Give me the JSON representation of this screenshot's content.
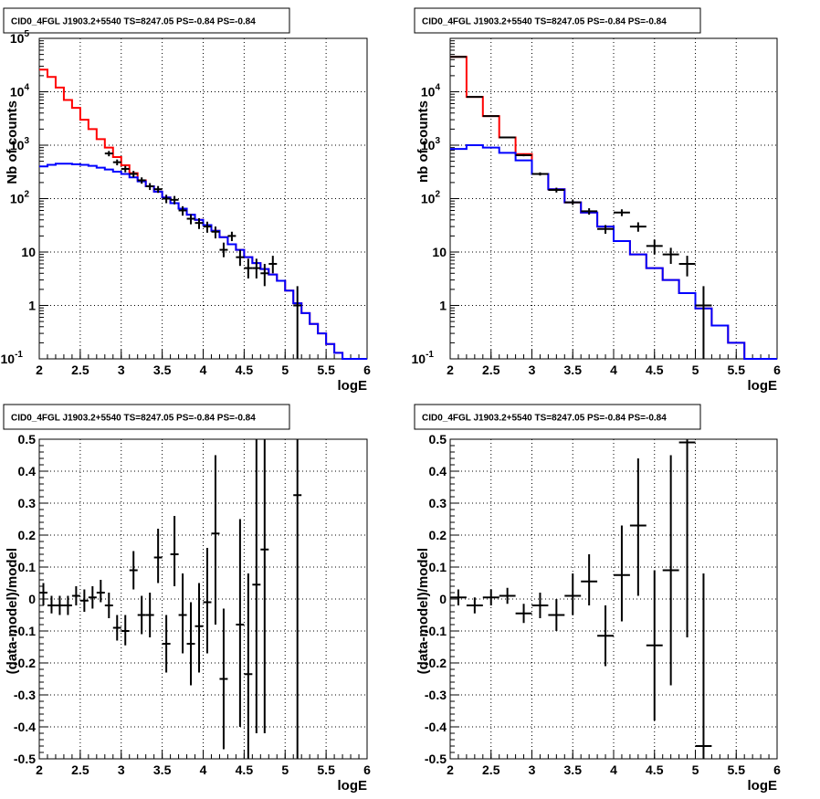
{
  "colors": {
    "total_model": "#ff0000",
    "component_model": "#0000ff",
    "data": "#000000",
    "grid": "#000000"
  },
  "chart_data": [
    {
      "type": "line",
      "title": "CID0_4FGL J1903.2+5540 TS=8247.05 PS=-0.84 PS=-0.84",
      "xlabel": "logE",
      "ylabel": "Nb of counts",
      "xlim": [
        2,
        6
      ],
      "ylim": [
        0.1,
        100000
      ],
      "yscale": "log",
      "grid": true,
      "xticks": [
        "2",
        "2.5",
        "3",
        "3.5",
        "4",
        "4.5",
        "5",
        "5.5",
        "6"
      ],
      "yticks": [
        "10^-1",
        "1",
        "10",
        "10^2",
        "10^3",
        "10^4",
        "10^5"
      ],
      "bin_edges": [
        2.0,
        2.1,
        2.2,
        2.3,
        2.4,
        2.5,
        2.6,
        2.7,
        2.8,
        2.9,
        3.0,
        3.1,
        3.2,
        3.3,
        3.4,
        3.5,
        3.6,
        3.7,
        3.8,
        3.9,
        4.0,
        4.1,
        4.2,
        4.3,
        4.4,
        4.5,
        4.6,
        4.7,
        4.8,
        4.9,
        5.0,
        5.1,
        5.2,
        5.3,
        5.4,
        5.5,
        5.6,
        5.7,
        5.8,
        5.9,
        6.0
      ],
      "series": [
        {
          "role": "total_model",
          "values": [
            26000,
            19000,
            12000,
            7000,
            5000,
            3000,
            2000,
            1300,
            900,
            600,
            420,
            300,
            220,
            170,
            135,
            105,
            82,
            65,
            50,
            40,
            32,
            25,
            19,
            14,
            11,
            8,
            6.2,
            4.8,
            3.8,
            2.9,
            1.9,
            1.1,
            0.72,
            0.45,
            0.3,
            0.19,
            0.13,
            0.1,
            0.1,
            0.1
          ]
        },
        {
          "role": "component_model",
          "values": [
            400,
            430,
            450,
            450,
            440,
            430,
            410,
            380,
            350,
            320,
            290,
            250,
            210,
            170,
            135,
            105,
            82,
            65,
            50,
            40,
            32,
            25,
            19,
            14,
            11,
            8,
            6.2,
            4.8,
            3.8,
            2.9,
            1.9,
            1.1,
            0.72,
            0.45,
            0.3,
            0.19,
            0.13,
            0.1,
            0.1,
            0.1
          ]
        }
      ],
      "points": [
        {
          "x": 2.85,
          "y": 700,
          "lo": 620,
          "hi": 780
        },
        {
          "x": 2.95,
          "y": 480,
          "lo": 420,
          "hi": 540
        },
        {
          "x": 3.05,
          "y": 360,
          "lo": 310,
          "hi": 410
        },
        {
          "x": 3.15,
          "y": 290,
          "lo": 250,
          "hi": 330
        },
        {
          "x": 3.25,
          "y": 220,
          "lo": 190,
          "hi": 250
        },
        {
          "x": 3.35,
          "y": 170,
          "lo": 145,
          "hi": 195
        },
        {
          "x": 3.45,
          "y": 150,
          "lo": 128,
          "hi": 172
        },
        {
          "x": 3.55,
          "y": 100,
          "lo": 82,
          "hi": 118
        },
        {
          "x": 3.65,
          "y": 95,
          "lo": 78,
          "hi": 112
        },
        {
          "x": 3.75,
          "y": 60,
          "lo": 48,
          "hi": 72
        },
        {
          "x": 3.85,
          "y": 42,
          "lo": 33,
          "hi": 51
        },
        {
          "x": 3.95,
          "y": 35,
          "lo": 27,
          "hi": 43
        },
        {
          "x": 4.05,
          "y": 30,
          "lo": 23,
          "hi": 37
        },
        {
          "x": 4.15,
          "y": 24,
          "lo": 18,
          "hi": 30
        },
        {
          "x": 4.25,
          "y": 11,
          "lo": 8,
          "hi": 15
        },
        {
          "x": 4.35,
          "y": 20,
          "lo": 16,
          "hi": 24
        },
        {
          "x": 4.45,
          "y": 8,
          "lo": 5.5,
          "hi": 11
        },
        {
          "x": 4.55,
          "y": 5,
          "lo": 3.2,
          "hi": 7.5
        },
        {
          "x": 4.65,
          "y": 5,
          "lo": 3.2,
          "hi": 7.5
        },
        {
          "x": 4.75,
          "y": 4,
          "lo": 2.3,
          "hi": 6
        },
        {
          "x": 4.85,
          "y": 6,
          "lo": 4,
          "hi": 8.5
        },
        {
          "x": 5.15,
          "y": 1,
          "lo": 0.1,
          "hi": 2.3
        }
      ]
    },
    {
      "type": "line",
      "title": "CID0_4FGL J1903.2+5540 TS=8247.05 PS=-0.84 PS=-0.84",
      "xlabel": "logE",
      "ylabel": "nb of counts",
      "xlim": [
        2,
        6
      ],
      "ylim": [
        0.1,
        100000
      ],
      "yscale": "log",
      "grid": true,
      "xticks": [
        "2",
        "2.5",
        "3",
        "3.5",
        "4",
        "4.5",
        "5",
        "5.5",
        "6"
      ],
      "yticks": [
        "10^-1",
        "1",
        "10",
        "10^2",
        "10^3",
        "10^4"
      ],
      "bin_edges": [
        2.0,
        2.2,
        2.4,
        2.6,
        2.8,
        3.0,
        3.2,
        3.4,
        3.6,
        3.8,
        4.0,
        4.2,
        4.4,
        4.6,
        4.8,
        5.0,
        5.2,
        5.4,
        5.6,
        5.8,
        6.0
      ],
      "series": [
        {
          "role": "total_model",
          "values": [
            45000,
            8000,
            3500,
            1400,
            680,
            290,
            150,
            85,
            55,
            30,
            16,
            9,
            5,
            3,
            1.7,
            0.88,
            0.42,
            0.2,
            0.1,
            0.1
          ]
        },
        {
          "role": "component_model",
          "values": [
            850,
            1000,
            900,
            720,
            520,
            290,
            150,
            85,
            55,
            30,
            16,
            9,
            5,
            3,
            1.7,
            0.88,
            0.42,
            0.2,
            0.1,
            0.1
          ]
        }
      ],
      "points": [
        {
          "x": 2.1,
          "y": 45000,
          "lo": 44000,
          "hi": 46000
        },
        {
          "x": 2.3,
          "y": 8000,
          "lo": 7800,
          "hi": 8200
        },
        {
          "x": 2.5,
          "y": 3500,
          "lo": 3400,
          "hi": 3600
        },
        {
          "x": 2.7,
          "y": 1400,
          "lo": 1350,
          "hi": 1450
        },
        {
          "x": 2.9,
          "y": 650,
          "lo": 620,
          "hi": 680
        },
        {
          "x": 3.1,
          "y": 290,
          "lo": 270,
          "hi": 310
        },
        {
          "x": 3.3,
          "y": 145,
          "lo": 130,
          "hi": 160
        },
        {
          "x": 3.5,
          "y": 85,
          "lo": 76,
          "hi": 94
        },
        {
          "x": 3.7,
          "y": 58,
          "lo": 50,
          "hi": 66
        },
        {
          "x": 3.9,
          "y": 27,
          "lo": 22,
          "hi": 32
        },
        {
          "x": 4.1,
          "y": 55,
          "lo": 47,
          "hi": 63
        },
        {
          "x": 4.3,
          "y": 30,
          "lo": 24,
          "hi": 36
        },
        {
          "x": 4.5,
          "y": 13,
          "lo": 9,
          "hi": 17
        },
        {
          "x": 4.7,
          "y": 9,
          "lo": 6,
          "hi": 12
        },
        {
          "x": 4.9,
          "y": 6,
          "lo": 3.5,
          "hi": 8.5
        },
        {
          "x": 5.1,
          "y": 1,
          "lo": 0.1,
          "hi": 2.3
        }
      ]
    },
    {
      "type": "scatter",
      "title": "CID0_4FGL J1903.2+5540 TS=8247.05 PS=-0.84 PS=-0.84",
      "xlabel": "logE",
      "ylabel": "(data-model)/model",
      "xlim": [
        2,
        6
      ],
      "ylim": [
        -0.5,
        0.5
      ],
      "grid": true,
      "xticks": [
        "2",
        "2.5",
        "3",
        "3.5",
        "4",
        "4.5",
        "5",
        "5.5",
        "6"
      ],
      "yticks": [
        "-0.5",
        "-0.4",
        "-0.3",
        "-0.2",
        "-0.1",
        "0",
        "0.1",
        "0.2",
        "0.3",
        "0.4",
        "0.5"
      ],
      "points": [
        {
          "x": 2.05,
          "y": 0.02,
          "lo": -0.02,
          "hi": 0.05
        },
        {
          "x": 2.15,
          "y": -0.02,
          "lo": -0.045,
          "hi": 0.01
        },
        {
          "x": 2.25,
          "y": -0.02,
          "lo": -0.05,
          "hi": 0.01
        },
        {
          "x": 2.35,
          "y": -0.02,
          "lo": -0.05,
          "hi": 0.01
        },
        {
          "x": 2.45,
          "y": 0.01,
          "lo": -0.02,
          "hi": 0.04
        },
        {
          "x": 2.55,
          "y": -0.005,
          "lo": -0.04,
          "hi": 0.03
        },
        {
          "x": 2.65,
          "y": 0.005,
          "lo": -0.03,
          "hi": 0.04
        },
        {
          "x": 2.75,
          "y": 0.02,
          "lo": -0.01,
          "hi": 0.06
        },
        {
          "x": 2.85,
          "y": -0.02,
          "lo": -0.06,
          "hi": 0.02
        },
        {
          "x": 2.95,
          "y": -0.09,
          "lo": -0.13,
          "hi": -0.05
        },
        {
          "x": 3.05,
          "y": -0.1,
          "lo": -0.145,
          "hi": -0.05
        },
        {
          "x": 3.15,
          "y": 0.09,
          "lo": 0.03,
          "hi": 0.15
        },
        {
          "x": 3.25,
          "y": -0.05,
          "lo": -0.11,
          "hi": 0.01
        },
        {
          "x": 3.35,
          "y": -0.05,
          "lo": -0.12,
          "hi": 0.02
        },
        {
          "x": 3.45,
          "y": 0.13,
          "lo": 0.05,
          "hi": 0.22
        },
        {
          "x": 3.55,
          "y": -0.14,
          "lo": -0.23,
          "hi": -0.05
        },
        {
          "x": 3.65,
          "y": 0.14,
          "lo": 0.04,
          "hi": 0.26
        },
        {
          "x": 3.75,
          "y": -0.05,
          "lo": -0.17,
          "hi": 0.08
        },
        {
          "x": 3.85,
          "y": -0.14,
          "lo": -0.27,
          "hi": -0.01
        },
        {
          "x": 3.95,
          "y": -0.085,
          "lo": -0.23,
          "hi": 0.05
        },
        {
          "x": 4.05,
          "y": -0.01,
          "lo": -0.17,
          "hi": 0.16
        },
        {
          "x": 4.15,
          "y": 0.205,
          "lo": -0.08,
          "hi": 0.45
        },
        {
          "x": 4.25,
          "y": -0.25,
          "lo": -0.47,
          "hi": -0.03
        },
        {
          "x": 4.45,
          "y": -0.08,
          "lo": -0.4,
          "hi": 0.25
        },
        {
          "x": 4.55,
          "y": -0.235,
          "lo": -0.5,
          "hi": 0.08
        },
        {
          "x": 4.65,
          "y": 0.045,
          "lo": -0.42,
          "hi": 0.5
        },
        {
          "x": 4.75,
          "y": 0.155,
          "lo": -0.42,
          "hi": 0.5
        },
        {
          "x": 5.15,
          "y": 0.325,
          "lo": -0.5,
          "hi": 0.5
        }
      ]
    },
    {
      "type": "scatter",
      "title": "CID0_4FGL J1903.2+5540 TS=8247.05 PS=-0.84 PS=-0.84",
      "xlabel": "logE",
      "ylabel": "(data-model)/model",
      "xlim": [
        2,
        6
      ],
      "ylim": [
        -0.5,
        0.5
      ],
      "grid": true,
      "xticks": [
        "2",
        "2.5",
        "3",
        "3.5",
        "4",
        "4.5",
        "5",
        "5.5",
        "6"
      ],
      "yticks": [
        "-0.5",
        "-0.4",
        "-0.3",
        "-0.2",
        "-0.1",
        "0",
        "0.1",
        "0.2",
        "0.3",
        "0.4",
        "0.5"
      ],
      "points": [
        {
          "x": 2.1,
          "y": 0.005,
          "lo": -0.02,
          "hi": 0.03
        },
        {
          "x": 2.3,
          "y": -0.02,
          "lo": -0.045,
          "hi": 0.005
        },
        {
          "x": 2.5,
          "y": 0.005,
          "lo": -0.02,
          "hi": 0.03
        },
        {
          "x": 2.7,
          "y": 0.01,
          "lo": -0.015,
          "hi": 0.035
        },
        {
          "x": 2.9,
          "y": -0.045,
          "lo": -0.075,
          "hi": -0.015
        },
        {
          "x": 3.1,
          "y": -0.02,
          "lo": -0.06,
          "hi": 0.02
        },
        {
          "x": 3.3,
          "y": -0.05,
          "lo": -0.1,
          "hi": 0.0
        },
        {
          "x": 3.5,
          "y": 0.01,
          "lo": -0.05,
          "hi": 0.08
        },
        {
          "x": 3.7,
          "y": 0.055,
          "lo": -0.02,
          "hi": 0.14
        },
        {
          "x": 3.9,
          "y": -0.115,
          "lo": -0.21,
          "hi": -0.02
        },
        {
          "x": 4.1,
          "y": 0.075,
          "lo": -0.07,
          "hi": 0.23
        },
        {
          "x": 4.3,
          "y": 0.23,
          "lo": 0.01,
          "hi": 0.44
        },
        {
          "x": 4.5,
          "y": -0.145,
          "lo": -0.38,
          "hi": 0.09
        },
        {
          "x": 4.7,
          "y": 0.09,
          "lo": -0.27,
          "hi": 0.45
        },
        {
          "x": 4.9,
          "y": 0.49,
          "lo": -0.12,
          "hi": 0.5
        },
        {
          "x": 5.1,
          "y": -0.46,
          "lo": -0.5,
          "hi": 0.08
        }
      ]
    }
  ]
}
